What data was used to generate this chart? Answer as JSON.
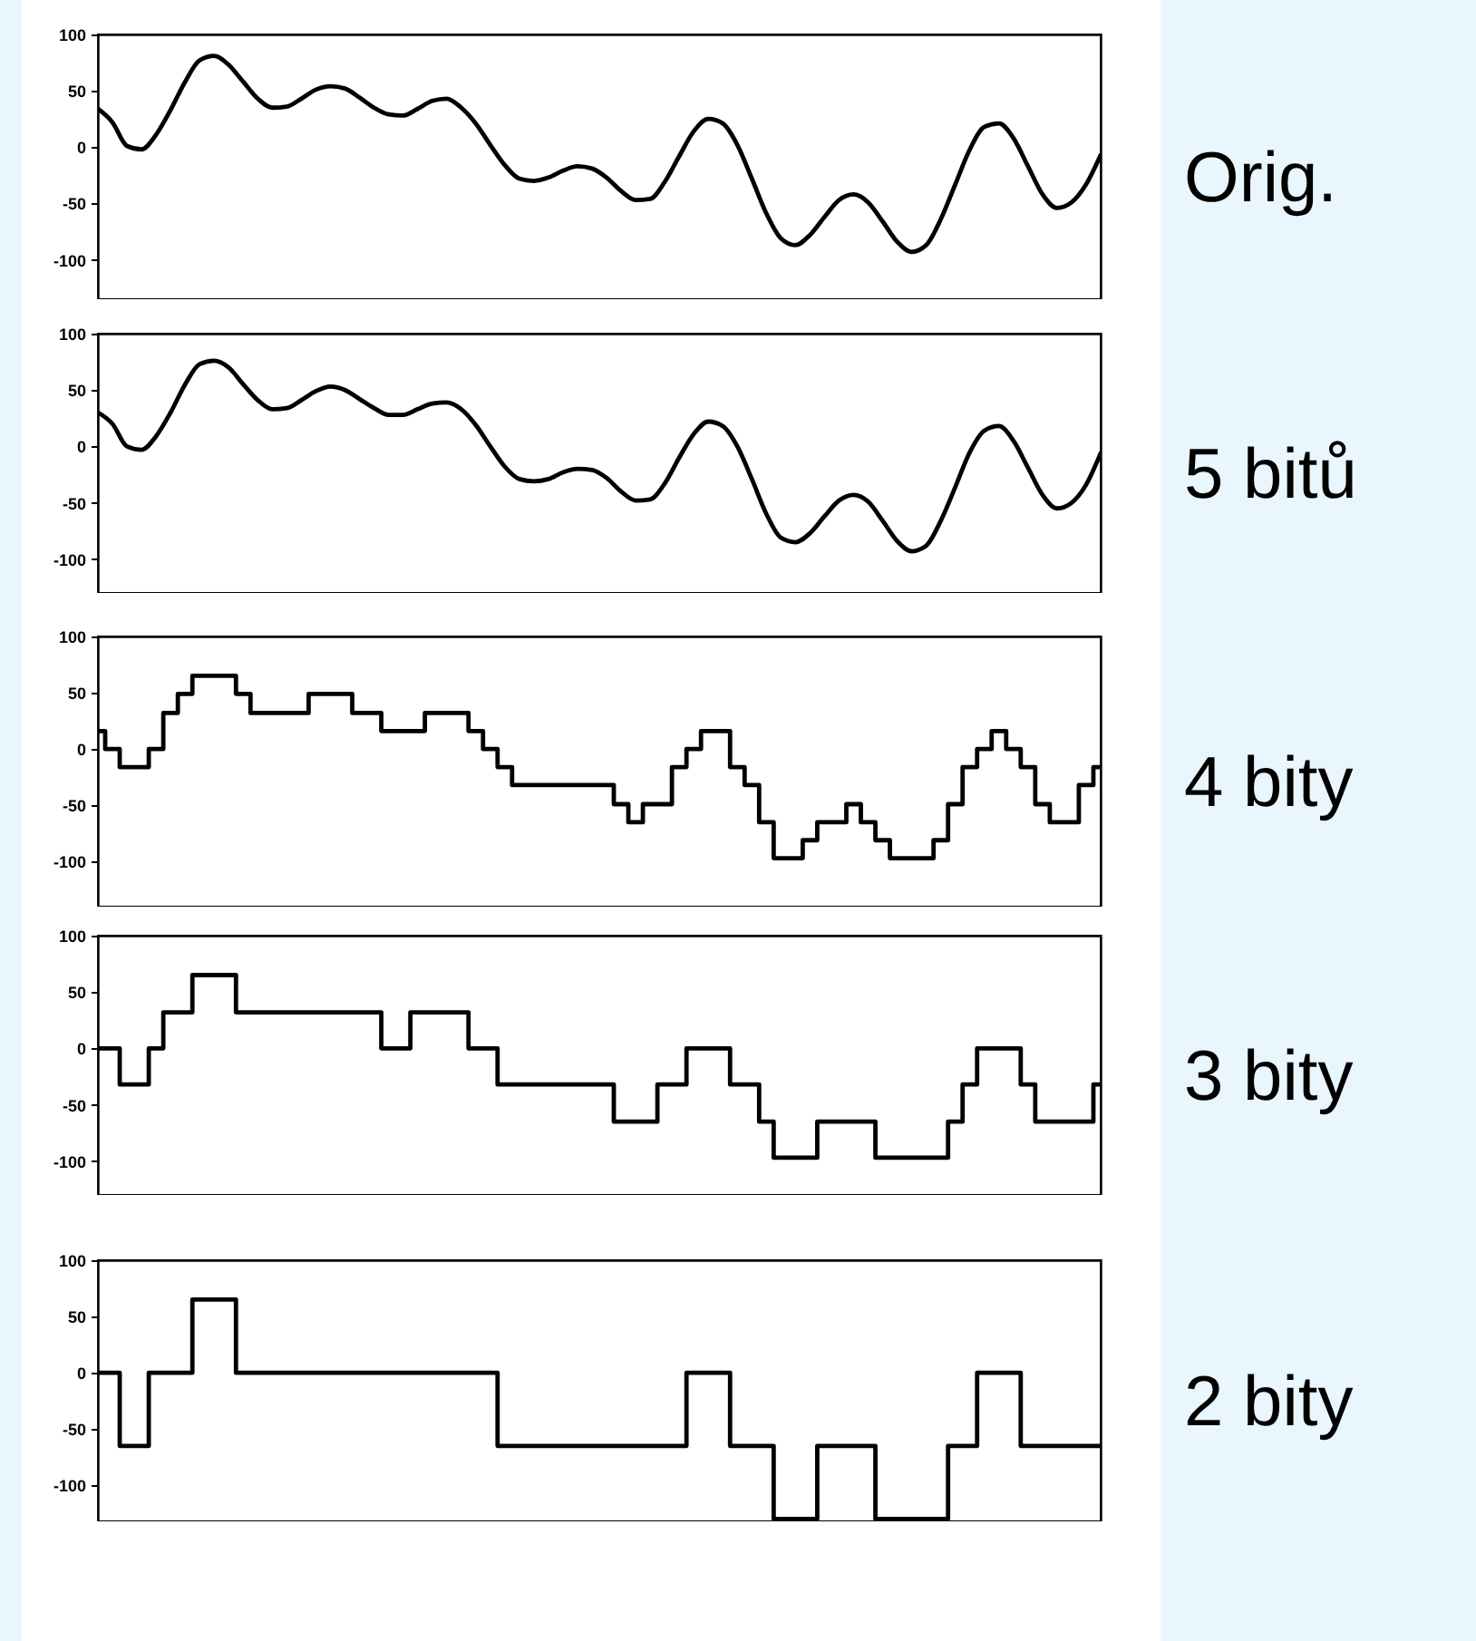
{
  "chart_data": [
    {
      "type": "line",
      "annotations": [
        "Orig."
      ],
      "color": "#000000",
      "ylim": [
        -135,
        100
      ],
      "yticks": [
        100,
        50,
        0,
        -50,
        -100
      ],
      "categories": [
        null,
        null,
        null,
        null,
        null,
        null,
        null,
        null,
        null,
        null,
        null,
        null,
        null,
        null,
        null,
        null,
        null,
        null,
        null,
        null,
        null,
        null,
        null,
        null,
        null,
        null,
        null,
        null,
        null,
        null,
        null,
        null,
        null,
        null,
        null,
        null,
        null,
        null,
        null,
        null,
        null,
        null,
        null,
        null,
        null,
        null,
        null,
        null,
        null,
        null,
        null,
        null,
        null,
        null,
        null,
        null,
        null,
        null,
        null,
        null,
        null,
        null,
        null,
        null,
        null,
        null,
        null,
        null,
        null,
        null
      ],
      "values": [
        34,
        22,
        1,
        -2,
        11,
        33,
        58,
        77,
        81,
        73,
        58,
        43,
        35,
        36,
        43,
        51,
        54,
        52,
        44,
        35,
        29,
        28,
        34,
        41,
        43,
        35,
        21,
        2,
        -16,
        -28,
        -30,
        -27,
        -21,
        -17,
        -19,
        -27,
        -39,
        -47,
        -46,
        -31,
        -8,
        14,
        25,
        21,
        2,
        -28,
        -59,
        -81,
        -87,
        -78,
        -62,
        -47,
        -42,
        -49,
        -66,
        -84,
        -93,
        -87,
        -64,
        -33,
        -2,
        18,
        21,
        8,
        -17,
        -42,
        -54,
        -49,
        -33,
        -7
      ]
    },
    {
      "type": "line",
      "annotations": [
        "5 bitů"
      ],
      "color": "#000000",
      "ylim": [
        -130,
        100
      ],
      "yticks": [
        100,
        50,
        0,
        -50,
        -100
      ],
      "categories": [
        null,
        null,
        null,
        null,
        null,
        null,
        null,
        null,
        null,
        null,
        null,
        null,
        null,
        null,
        null,
        null,
        null,
        null,
        null,
        null,
        null,
        null,
        null,
        null,
        null,
        null,
        null,
        null,
        null,
        null,
        null,
        null,
        null,
        null,
        null,
        null,
        null,
        null,
        null,
        null,
        null,
        null,
        null,
        null,
        null,
        null,
        null,
        null,
        null,
        null,
        null,
        null,
        null,
        null,
        null,
        null,
        null,
        null,
        null,
        null,
        null,
        null,
        null,
        null,
        null,
        null,
        null,
        null,
        null,
        null
      ],
      "values": [
        30,
        20,
        0,
        -3,
        9,
        30,
        55,
        73,
        76,
        70,
        55,
        41,
        33,
        34,
        41,
        49,
        53,
        50,
        42,
        34,
        28,
        28,
        33,
        38,
        39,
        33,
        19,
        0,
        -18,
        -29,
        -31,
        -29,
        -23,
        -20,
        -21,
        -28,
        -40,
        -48,
        -47,
        -33,
        -10,
        11,
        22,
        18,
        0,
        -29,
        -60,
        -81,
        -85,
        -77,
        -62,
        -48,
        -43,
        -49,
        -66,
        -84,
        -93,
        -88,
        -66,
        -36,
        -5,
        14,
        18,
        5,
        -19,
        -43,
        -55,
        -50,
        -34,
        -6
      ]
    },
    {
      "type": "step",
      "annotations": [
        "4 bity"
      ],
      "color": "#000000",
      "ylim": [
        -140,
        100
      ],
      "yticks": [
        100,
        50,
        0,
        -50,
        -100
      ],
      "categories": [
        null,
        null,
        null,
        null,
        null,
        null,
        null,
        null,
        null,
        null,
        null,
        null,
        null,
        null,
        null,
        null,
        null,
        null,
        null,
        null,
        null,
        null,
        null,
        null,
        null,
        null,
        null,
        null,
        null,
        null,
        null,
        null,
        null,
        null,
        null,
        null,
        null,
        null,
        null,
        null,
        null,
        null,
        null,
        null,
        null,
        null,
        null,
        null,
        null,
        null,
        null,
        null,
        null,
        null,
        null,
        null,
        null,
        null,
        null,
        null,
        null,
        null,
        null,
        null,
        null,
        null,
        null,
        null,
        null,
        null
      ],
      "values": [
        16,
        0,
        -16,
        -16,
        0,
        32,
        49,
        65,
        65,
        65,
        49,
        32,
        32,
        32,
        32,
        49,
        49,
        49,
        32,
        32,
        16,
        16,
        16,
        32,
        32,
        32,
        16,
        0,
        -16,
        -32,
        -32,
        -32,
        -32,
        -32,
        -32,
        -32,
        -49,
        -65,
        -49,
        -49,
        -16,
        0,
        16,
        16,
        -16,
        -32,
        -65,
        -97,
        -97,
        -81,
        -65,
        -65,
        -49,
        -65,
        -81,
        -97,
        -97,
        -97,
        -81,
        -49,
        -16,
        0,
        16,
        0,
        -16,
        -49,
        -65,
        -65,
        -32,
        -16
      ]
    },
    {
      "type": "step",
      "annotations": [
        "3 bity"
      ],
      "color": "#000000",
      "ylim": [
        -130,
        100
      ],
      "yticks": [
        100,
        50,
        0,
        -50,
        -100
      ],
      "categories": [
        null,
        null,
        null,
        null,
        null,
        null,
        null,
        null,
        null,
        null,
        null,
        null,
        null,
        null,
        null,
        null,
        null,
        null,
        null,
        null,
        null,
        null,
        null,
        null,
        null,
        null,
        null,
        null,
        null,
        null,
        null,
        null,
        null,
        null,
        null,
        null,
        null,
        null,
        null,
        null,
        null,
        null,
        null,
        null,
        null,
        null,
        null,
        null,
        null,
        null,
        null,
        null,
        null,
        null,
        null,
        null,
        null,
        null,
        null,
        null,
        null,
        null,
        null,
        null,
        null,
        null,
        null,
        null,
        null,
        null
      ],
      "values": [
        0,
        0,
        -32,
        -32,
        0,
        32,
        32,
        65,
        65,
        65,
        32,
        32,
        32,
        32,
        32,
        32,
        32,
        32,
        32,
        32,
        0,
        0,
        32,
        32,
        32,
        32,
        0,
        0,
        -32,
        -32,
        -32,
        -32,
        -32,
        -32,
        -32,
        -32,
        -65,
        -65,
        -65,
        -32,
        -32,
        0,
        0,
        0,
        -32,
        -32,
        -65,
        -97,
        -97,
        -97,
        -65,
        -65,
        -65,
        -65,
        -97,
        -97,
        -97,
        -97,
        -97,
        -65,
        -32,
        0,
        0,
        0,
        -32,
        -65,
        -65,
        -65,
        -65,
        -32
      ]
    },
    {
      "type": "step",
      "annotations": [
        "2 bity"
      ],
      "color": "#000000",
      "ylim": [
        -132,
        100
      ],
      "yticks": [
        100,
        50,
        0,
        -50,
        -100
      ],
      "categories": [
        null,
        null,
        null,
        null,
        null,
        null,
        null,
        null,
        null,
        null,
        null,
        null,
        null,
        null,
        null,
        null,
        null,
        null,
        null,
        null,
        null,
        null,
        null,
        null,
        null,
        null,
        null,
        null,
        null,
        null,
        null,
        null,
        null,
        null,
        null,
        null,
        null,
        null,
        null,
        null,
        null,
        null,
        null,
        null,
        null,
        null,
        null,
        null,
        null,
        null,
        null,
        null,
        null,
        null,
        null,
        null,
        null,
        null,
        null,
        null,
        null,
        null,
        null,
        null,
        null,
        null,
        null,
        null,
        null,
        null
      ],
      "values": [
        0,
        0,
        -65,
        -65,
        0,
        0,
        0,
        65,
        65,
        65,
        0,
        0,
        0,
        0,
        0,
        0,
        0,
        0,
        0,
        0,
        0,
        0,
        0,
        0,
        0,
        0,
        0,
        0,
        -65,
        -65,
        -65,
        -65,
        -65,
        -65,
        -65,
        -65,
        -65,
        -65,
        -65,
        -65,
        -65,
        0,
        0,
        0,
        -65,
        -65,
        -65,
        -130,
        -130,
        -130,
        -65,
        -65,
        -65,
        -65,
        -130,
        -130,
        -130,
        -130,
        -130,
        -65,
        -65,
        0,
        0,
        0,
        -65,
        -65,
        -65,
        -65,
        -65,
        -65
      ]
    }
  ]
}
